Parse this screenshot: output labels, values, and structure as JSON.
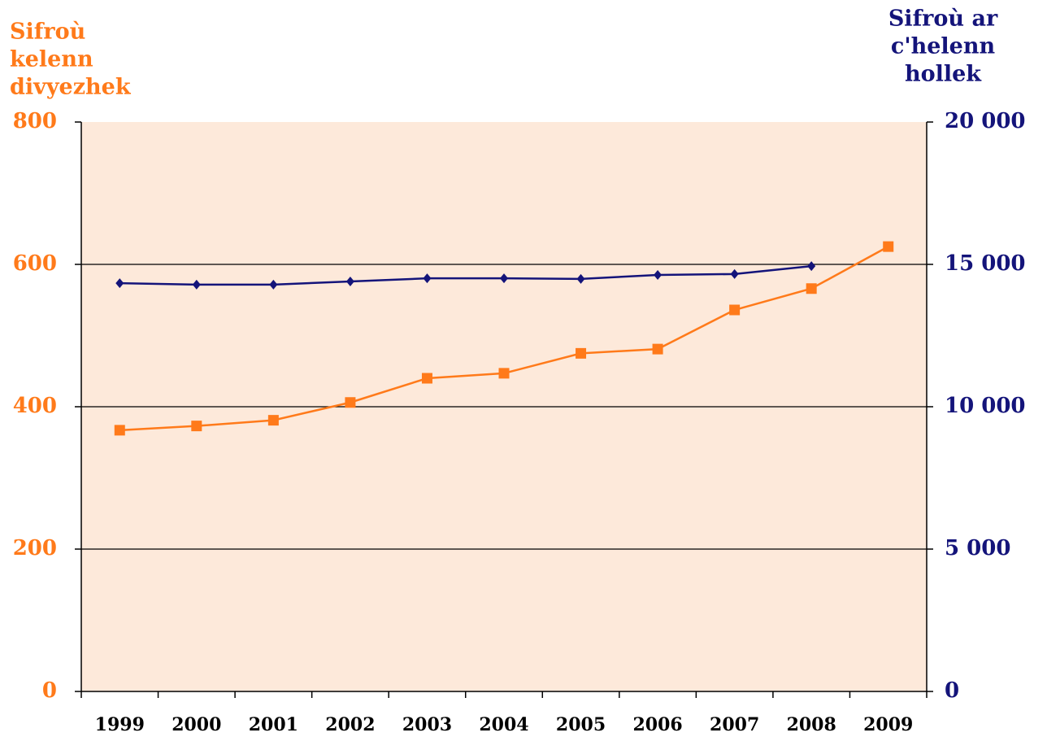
{
  "chart_data": {
    "type": "line",
    "ylabel": [
      "Sifroù",
      "kelenn",
      "divyezhek"
    ],
    "y2label": [
      "Sifroù ar",
      "c'helenn",
      "hollek"
    ],
    "categories": [
      "1999",
      "2000",
      "2001",
      "2002",
      "2003",
      "2004",
      "2005",
      "2006",
      "2007",
      "2008",
      "2009"
    ],
    "series": [
      {
        "color": "#ff7a1a",
        "marker": "square",
        "axis": "y",
        "values": [
          367,
          373,
          381,
          406,
          440,
          447,
          475,
          481,
          536,
          566,
          625
        ]
      },
      {
        "color": "#14147a",
        "marker": "diamond",
        "axis": "y2",
        "values": [
          14340,
          14290,
          14290,
          14400,
          14510,
          14510,
          14490,
          14630,
          14660,
          14940,
          null
        ]
      }
    ],
    "ylim": [
      0,
      800
    ],
    "yticks": [
      0,
      200,
      400,
      600,
      800
    ],
    "y2lim": [
      0,
      20000
    ],
    "y2ticks": [
      0,
      {
        "value": 5000,
        "label": "5 000"
      },
      {
        "value": 10000,
        "label": "10 000"
      },
      {
        "value": 15000,
        "label": "15 000"
      },
      {
        "value": 20000,
        "label": "20 000"
      }
    ],
    "grid": true,
    "background": "#fde9da",
    "ycolor": "#ff7a1a",
    "y2color": "#14147a"
  }
}
